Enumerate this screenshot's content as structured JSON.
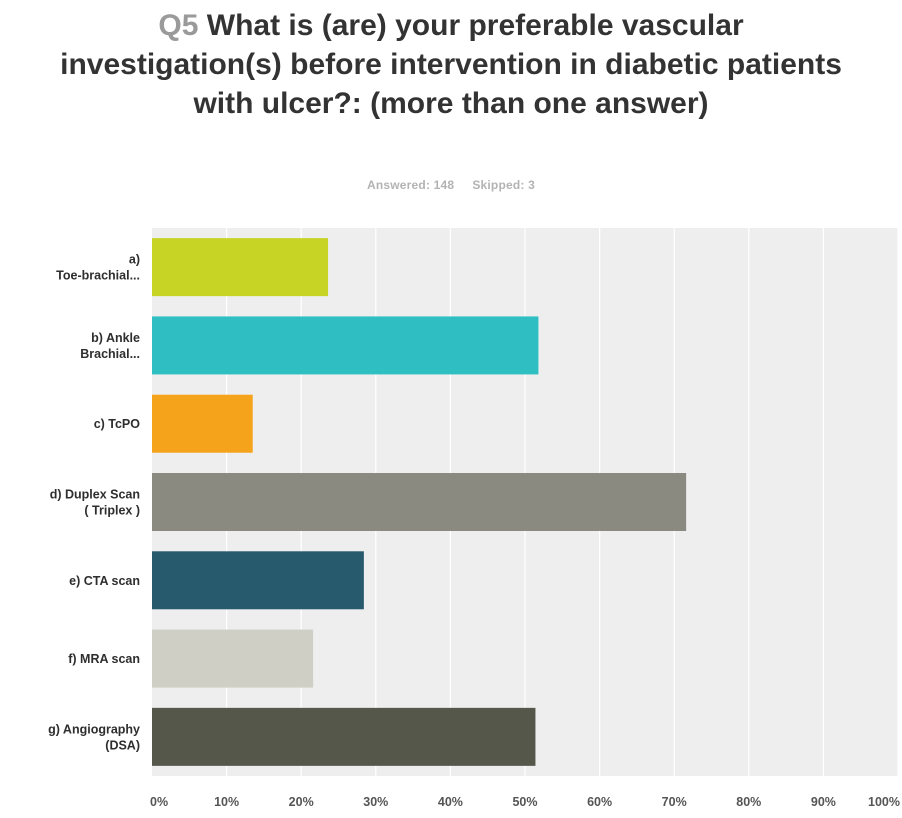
{
  "question": {
    "number": "Q5",
    "text": "What is (are) your preferable vascular investigation(s) before intervention in diabetic patients with ulcer?: (more than one answer)"
  },
  "stats": {
    "answered": "Answered: 148",
    "skipped": "Skipped: 3"
  },
  "chart_data": {
    "type": "bar",
    "orientation": "horizontal",
    "categories": [
      [
        "a)",
        "Toe-brachial..."
      ],
      [
        "b) Ankle",
        "Brachial..."
      ],
      [
        "c) TcPO"
      ],
      [
        "d) Duplex Scan",
        "( Triplex )"
      ],
      [
        "e) CTA scan"
      ],
      [
        "f) MRA scan"
      ],
      [
        "g) Angiography",
        "(DSA)"
      ]
    ],
    "values": [
      23.6,
      51.8,
      13.5,
      71.6,
      28.4,
      21.6,
      51.4
    ],
    "unit": "%",
    "xlim": [
      0,
      100
    ],
    "ticks": [
      "0%",
      "10%",
      "20%",
      "30%",
      "40%",
      "50%",
      "60%",
      "70%",
      "80%",
      "90%",
      "100%"
    ],
    "colors": [
      "#c7d426",
      "#2fbfc3",
      "#f5a31a",
      "#8a8a80",
      "#285a6e",
      "#cfcfc5",
      "#55574a"
    ],
    "plot_background": "#eeeeee",
    "grid": true,
    "legend": "none"
  }
}
